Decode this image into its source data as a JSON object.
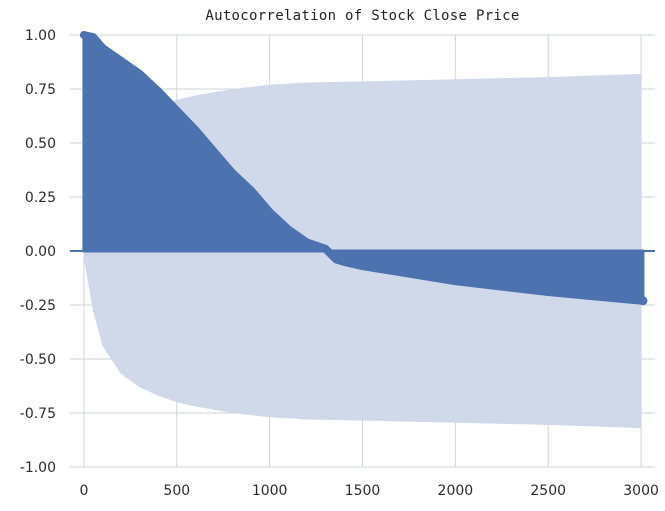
{
  "chart_data": {
    "type": "area",
    "title": "Autocorrelation of Stock Close Price",
    "xlabel": "",
    "ylabel": "",
    "xlim": [
      -75,
      3075
    ],
    "ylim": [
      -1.0,
      1.0
    ],
    "x_ticks": [
      "0",
      "500",
      "1000",
      "1500",
      "2000",
      "2500",
      "3000"
    ],
    "x_tick_values": [
      0,
      500,
      1000,
      1500,
      2000,
      2500,
      3000
    ],
    "y_ticks": [
      "1.00",
      "0.75",
      "0.50",
      "0.25",
      "0.00",
      "-0.25",
      "-0.50",
      "-0.75",
      "-1.00"
    ],
    "y_tick_values": [
      1.0,
      0.75,
      0.5,
      0.25,
      0.0,
      -0.25,
      -0.5,
      -0.75,
      -1.0
    ],
    "grid": true,
    "legend": "none",
    "colors": {
      "acf": "#4c72b0",
      "confidence_band": "#cfd9ea",
      "grid": "#d0d3da",
      "background": "#ffffff"
    },
    "series": [
      {
        "role": "autocorrelation",
        "x": [
          0,
          50,
          100,
          200,
          300,
          350,
          400,
          500,
          600,
          700,
          800,
          900,
          1000,
          1100,
          1200,
          1300,
          1360,
          1400,
          1500,
          2000,
          2500,
          3000,
          3010
        ],
        "values": [
          1.0,
          0.99,
          0.94,
          0.88,
          0.82,
          0.78,
          0.74,
          0.65,
          0.56,
          0.46,
          0.36,
          0.28,
          0.18,
          0.1,
          0.04,
          0.01,
          -0.04,
          -0.05,
          -0.07,
          -0.14,
          -0.19,
          -0.23,
          -0.23
        ]
      },
      {
        "role": "confidence-interval",
        "x": [
          0,
          50,
          100,
          200,
          300,
          400,
          500,
          600,
          800,
          1000,
          1200,
          1500,
          2000,
          2500,
          3000
        ],
        "upper": [
          0.04,
          0.28,
          0.44,
          0.57,
          0.63,
          0.67,
          0.7,
          0.72,
          0.75,
          0.77,
          0.78,
          0.785,
          0.795,
          0.805,
          0.82
        ],
        "lower": [
          -0.04,
          -0.28,
          -0.44,
          -0.57,
          -0.63,
          -0.67,
          -0.7,
          -0.72,
          -0.75,
          -0.77,
          -0.78,
          -0.785,
          -0.795,
          -0.805,
          -0.82
        ]
      }
    ]
  }
}
